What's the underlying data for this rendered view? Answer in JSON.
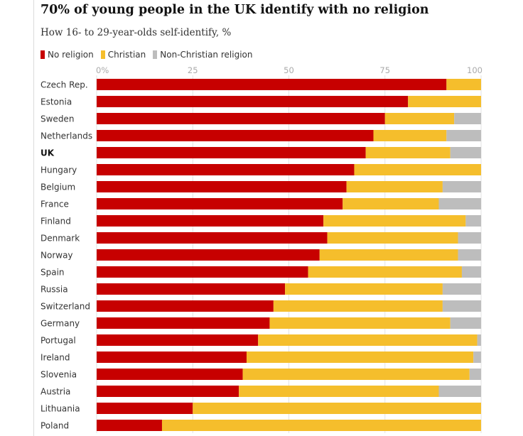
{
  "chart_data": {
    "type": "bar",
    "orientation": "horizontal",
    "stacked": true,
    "title": "70% of young people in the UK identify with no religion",
    "subtitle": "How 16- to 29-year-olds self-identify, %",
    "xlim": [
      0,
      100
    ],
    "xticks": [
      "0%",
      "25",
      "50",
      "75",
      "100"
    ],
    "grid": true,
    "legend_position": "top-left",
    "highlighted_category": "UK",
    "categories": [
      "Czech Rep.",
      "Estonia",
      "Sweden",
      "Netherlands",
      "UK",
      "Hungary",
      "Belgium",
      "France",
      "Finland",
      "Denmark",
      "Norway",
      "Spain",
      "Russia",
      "Switzerland",
      "Germany",
      "Portugal",
      "Ireland",
      "Slovenia",
      "Austria",
      "Lithuania",
      "Poland"
    ],
    "series": [
      {
        "name": "No religion",
        "color": "#c70000",
        "values": [
          91,
          81,
          75,
          72,
          70,
          67,
          65,
          64,
          59,
          60,
          58,
          55,
          49,
          46,
          45,
          42,
          39,
          38,
          37,
          25,
          17
        ]
      },
      {
        "name": "Christian",
        "color": "#f5be2c",
        "values": [
          9,
          19,
          18,
          19,
          22,
          33,
          25,
          25,
          37,
          34,
          36,
          40,
          41,
          44,
          47,
          57,
          59,
          59,
          52,
          75,
          83
        ]
      },
      {
        "name": "Non-Christian religion",
        "color": "#bdbdbd",
        "values": [
          0,
          0,
          7,
          9,
          8,
          0,
          10,
          11,
          4,
          6,
          6,
          5,
          10,
          10,
          8,
          1,
          2,
          3,
          11,
          0,
          0
        ]
      }
    ]
  }
}
